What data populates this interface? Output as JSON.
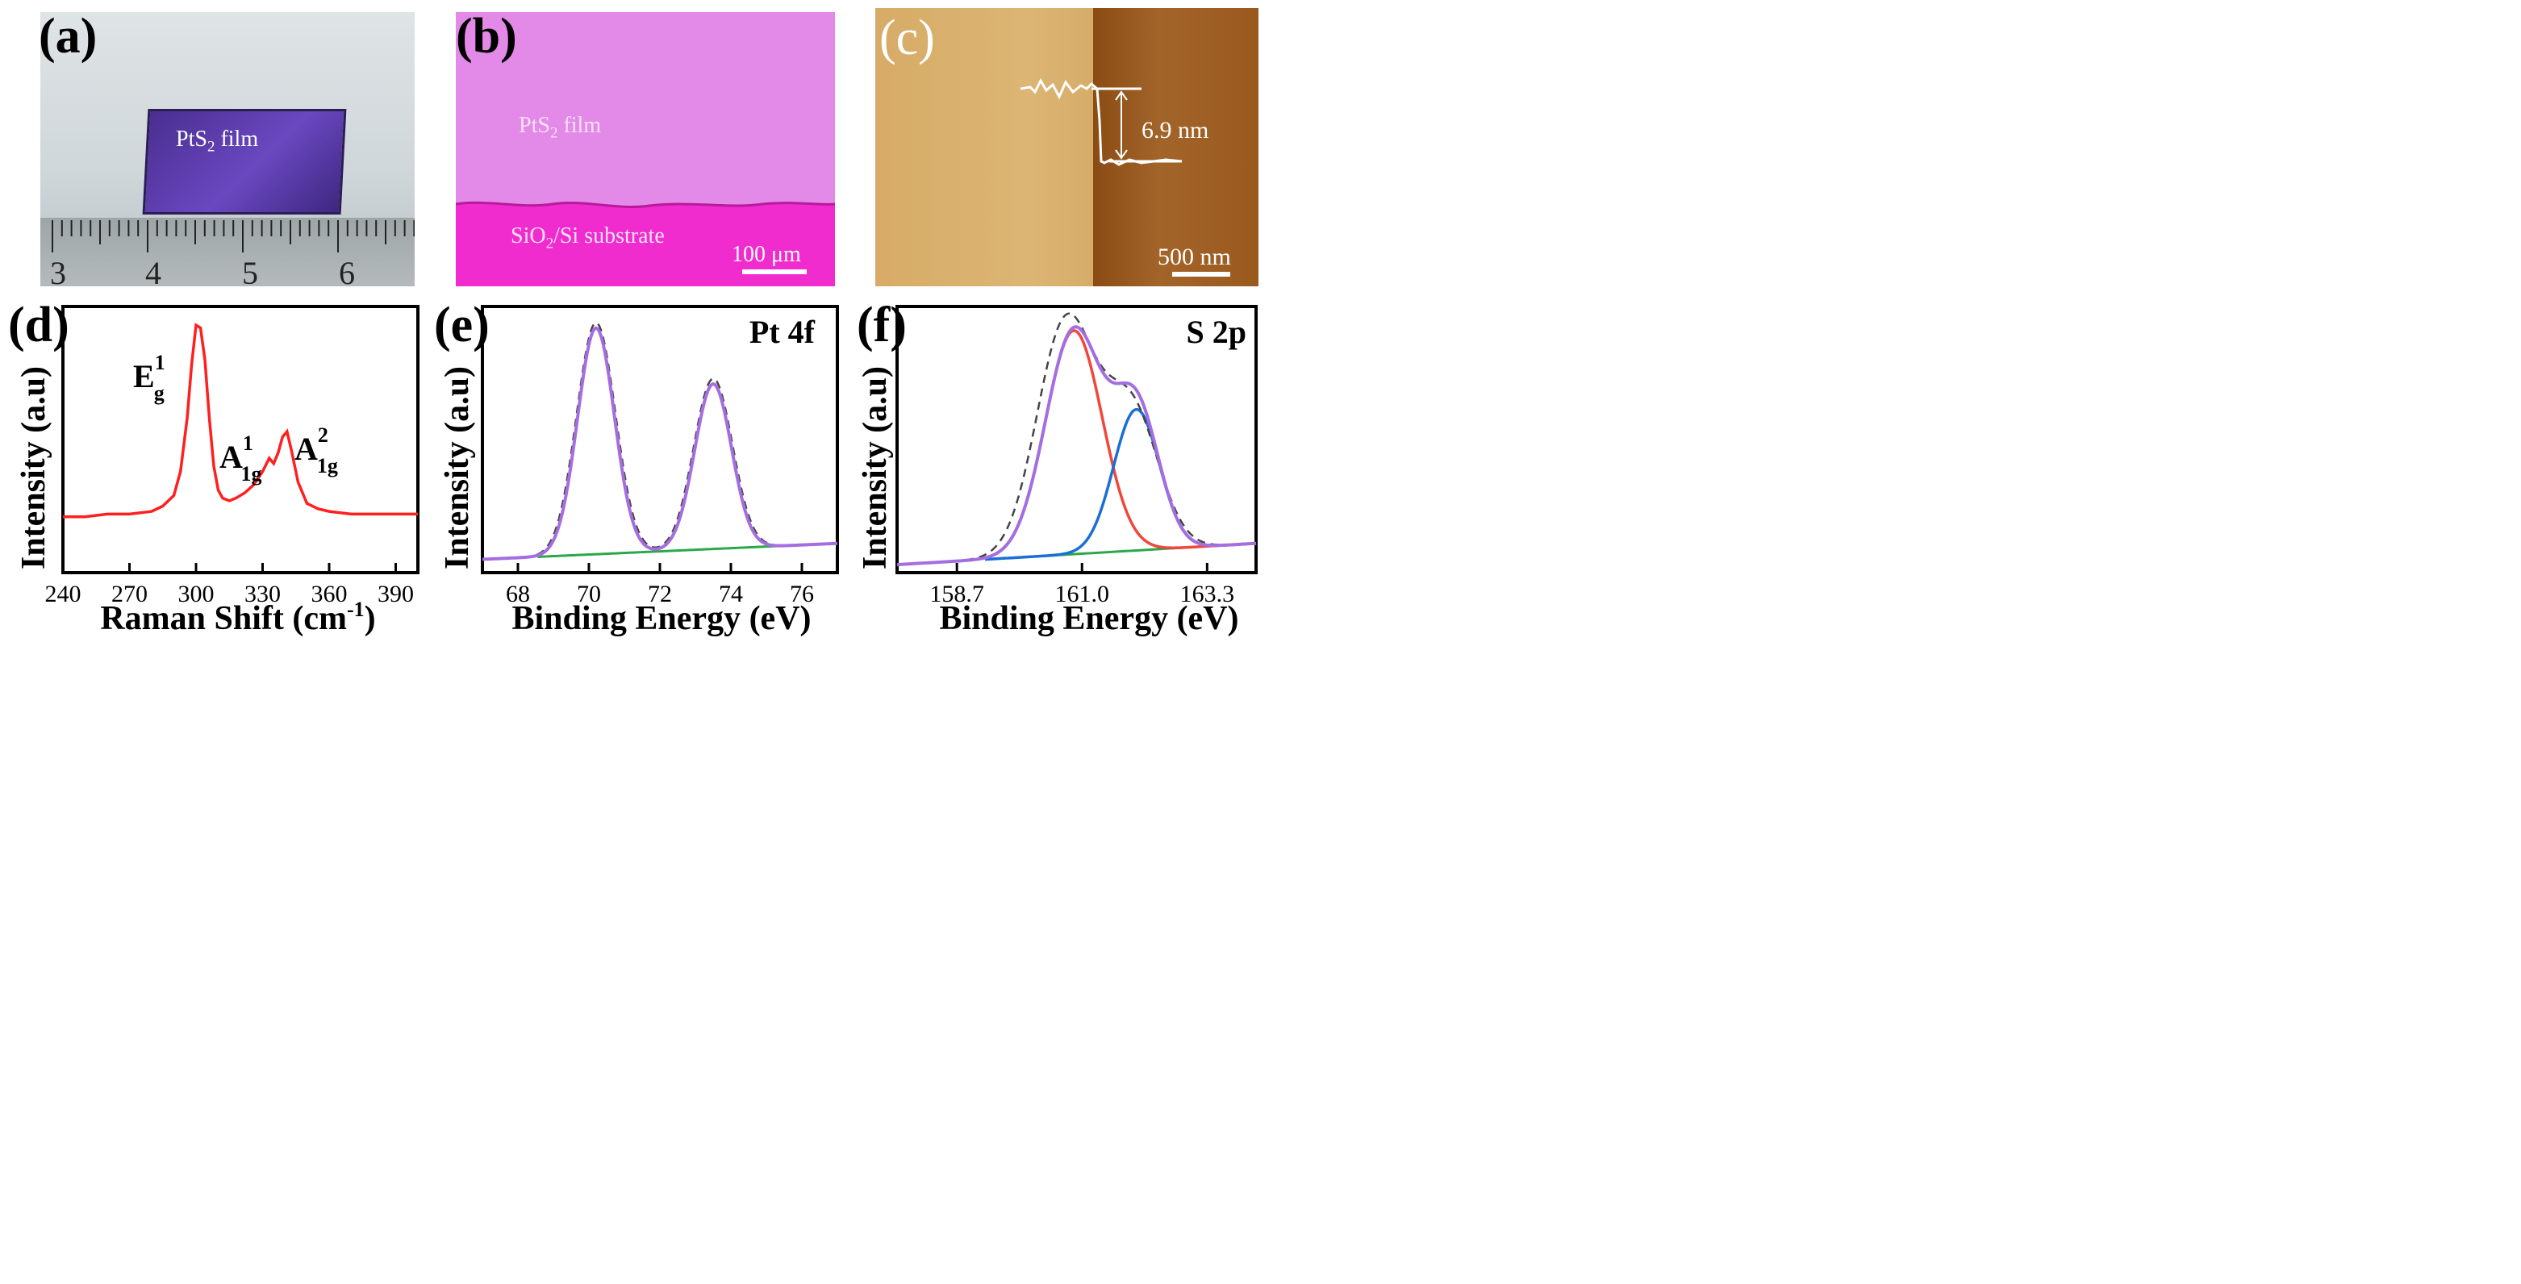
{
  "panels": {
    "a": {
      "label": "(a)",
      "film_label": "PtS",
      "film_sub": "2",
      "film_suffix": " film",
      "ruler_numbers": [
        "3",
        "4",
        "5",
        "6"
      ]
    },
    "b": {
      "label": "(b)",
      "film_label": "PtS",
      "film_sub": "2",
      "film_suffix": " film",
      "substrate_pre": "SiO",
      "substrate_sub": "2",
      "substrate_post": "/Si substrate",
      "scale": "100 μm"
    },
    "c": {
      "label": "(c)",
      "height": "6.9 nm",
      "scale": "500 nm"
    },
    "d": {
      "label": "(d)"
    },
    "e": {
      "label": "(e)",
      "element": "Pt 4f"
    },
    "f": {
      "label": "(f)",
      "element": "S 2p"
    }
  },
  "colors": {
    "raman": "#ff1f1f",
    "envelope": "#a56ee0",
    "baseline": "#2aa84a",
    "fit_red": "#f0463c",
    "fit_blue": "#1a6fd6",
    "raw": "#444444",
    "film": "#5a3aa8",
    "optical_film": "#e38ae8",
    "optical_sub": "#f02ccf",
    "afm_left": "#d9ae6a",
    "afm_right": "#9a5a1c"
  },
  "chart_data": [
    {
      "type": "line",
      "panel": "d",
      "xlabel": "Raman Shift (cm-1)",
      "xlabel_main": "Raman Shift (cm",
      "xlabel_sup": "-1",
      "xlabel_end": ")",
      "ylabel": "Intensity (a.u)",
      "xlim": [
        240,
        400
      ],
      "ylim": [
        0,
        1
      ],
      "xticks": [
        240,
        270,
        300,
        330,
        360,
        390
      ],
      "peak_labels": [
        {
          "main": "E",
          "sup": "1",
          "sub": "g",
          "x": 283,
          "y": 0.78
        },
        {
          "main": "A",
          "sup": "1",
          "sub": "1g",
          "x": 315,
          "y": 0.45
        },
        {
          "main": "A",
          "sup": "2",
          "sub": "1g",
          "x": 348,
          "y": 0.5
        }
      ],
      "series": [
        {
          "values_x": [
            240,
            250,
            260,
            270,
            280,
            285,
            290,
            293,
            296,
            298,
            300,
            302,
            304,
            306,
            308,
            310,
            312,
            315,
            318,
            322,
            326,
            330,
            333,
            335,
            337,
            339,
            341,
            343,
            346,
            350,
            355,
            360,
            370,
            380,
            390,
            400
          ],
          "values_y": [
            0.21,
            0.21,
            0.22,
            0.22,
            0.23,
            0.25,
            0.29,
            0.38,
            0.58,
            0.78,
            0.93,
            0.92,
            0.8,
            0.58,
            0.4,
            0.31,
            0.28,
            0.27,
            0.28,
            0.3,
            0.33,
            0.38,
            0.43,
            0.41,
            0.45,
            0.51,
            0.53,
            0.46,
            0.34,
            0.26,
            0.24,
            0.23,
            0.22,
            0.22,
            0.22,
            0.22
          ]
        }
      ]
    },
    {
      "type": "line",
      "panel": "e",
      "xlabel": "Binding Energy (eV)",
      "ylabel": "Intensity (a.u)",
      "xlim": [
        67,
        77
      ],
      "ylim": [
        0,
        1
      ],
      "xticks": [
        68,
        70,
        72,
        74,
        76
      ],
      "peaks": [
        {
          "center": 70.2,
          "height": 0.95,
          "width": 0.52
        },
        {
          "center": 73.5,
          "height": 0.72,
          "width": 0.52
        }
      ],
      "baseline": [
        0.05,
        0.11
      ]
    },
    {
      "type": "line",
      "panel": "f",
      "xlabel": "Binding Energy (eV)",
      "ylabel": "Intensity (a.u)",
      "xlim": [
        157.6,
        164.2
      ],
      "ylim": [
        0,
        1
      ],
      "xticks": [
        158.7,
        161.0,
        163.3
      ],
      "xtick_labels": [
        "158.7",
        "161.0",
        "163.3"
      ],
      "peaks": [
        {
          "center": 160.85,
          "height": 0.92,
          "width": 0.52
        },
        {
          "center": 162.0,
          "height": 0.58,
          "width": 0.42
        }
      ],
      "baseline": [
        0.03,
        0.11
      ]
    }
  ]
}
